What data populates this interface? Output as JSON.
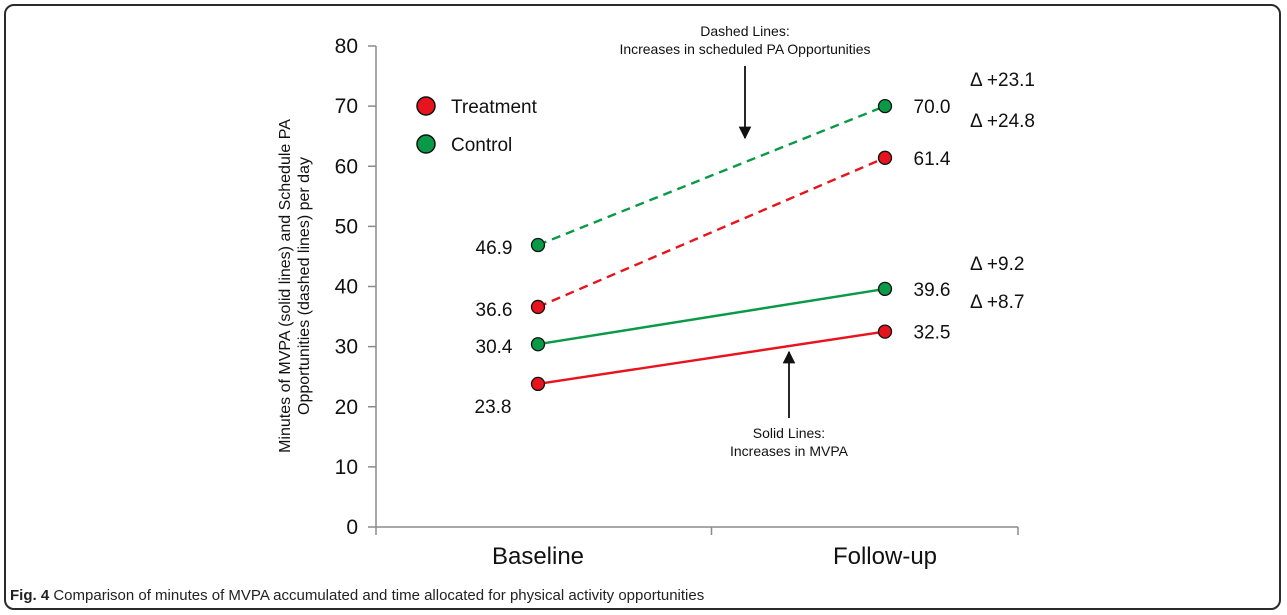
{
  "caption": {
    "label": "Fig. 4",
    "text": "Comparison of minutes of MVPA accumulated and time allocated for physical activity opportunities"
  },
  "colors": {
    "treatment": "#e8141d",
    "control": "#0a9a47",
    "axis": "#8a8a8a"
  },
  "chart_data": {
    "type": "line",
    "categories": [
      "Baseline",
      "Follow-up"
    ],
    "ylabel_lines": [
      "Minutes of MVPA (solid lines) and Schedule PA",
      "Opportunities (dashed lines) per day"
    ],
    "ylim": [
      0,
      80
    ],
    "yticks": [
      "0",
      "10",
      "20",
      "30",
      "40",
      "50",
      "60",
      "70",
      "80"
    ],
    "grid": false,
    "legend_position": "top-left",
    "legend": [
      "Treatment",
      "Control"
    ],
    "series": [
      {
        "group": "Treatment",
        "style": "solid",
        "values": [
          23.8,
          32.5
        ],
        "labels": [
          "23.8",
          "32.5"
        ],
        "delta": "Δ +8.7"
      },
      {
        "group": "Control",
        "style": "solid",
        "values": [
          30.4,
          39.6
        ],
        "labels": [
          "30.4",
          "39.6"
        ],
        "delta": "Δ +9.2"
      },
      {
        "group": "Treatment",
        "style": "dashed",
        "values": [
          36.6,
          61.4
        ],
        "labels": [
          "36.6",
          "61.4"
        ],
        "delta": "Δ +24.8"
      },
      {
        "group": "Control",
        "style": "dashed",
        "values": [
          46.9,
          70.0
        ],
        "labels": [
          "46.9",
          "70.0"
        ],
        "delta": "Δ +23.1"
      }
    ],
    "annotations": [
      {
        "name": "dashed-lines-annotation",
        "lines": [
          "Dashed Lines:",
          "Increases in scheduled PA Opportunities"
        ]
      },
      {
        "name": "solid-lines-annotation",
        "lines": [
          "Solid Lines:",
          "Increases in MVPA"
        ]
      }
    ]
  }
}
